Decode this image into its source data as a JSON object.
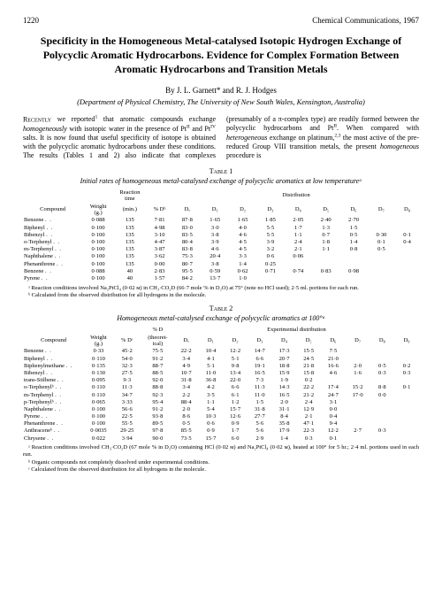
{
  "header": {
    "page_number": "1220",
    "journal": "Chemical Communications, 1967"
  },
  "title": "Specificity in the Homogeneous Metal-catalysed Isotopic Hydrogen Exchange of Polycyclic Aromatic Hydrocarbons.  Evidence for Complex Formation Between Aromatic Hydrocarbons and Transition Metals",
  "authors": "By J. L. Garnett* and R. J. Hodges",
  "affiliation": "(Department of Physical Chemistry, The University of New South Wales, Kensington, Australia)",
  "body": {
    "col_text": "Recently we reported¹ that aromatic compounds exchange homogeneously with isotopic water in the presence of Ptᴵᴵ and Ptᴵⱽ salts. It is now found that useful specificity of isotope is obtained with the polycyclic aromatic hydrocarbons under these conditions. The results (Tables 1 and 2) also indicate that complexes (presumably of a π-complex type) are readily formed between the polycyclic hydrocarbons and Ptᴵᴵ. When compared with heterogeneous exchange on platinum,²,³ the most active of the pre-reduced Group VIII transition metals, the present homogeneous procedure is"
  },
  "table1": {
    "label": "Table 1",
    "caption": "Initial rates of homogeneous metal-catalysed exchange of polycyclic aromatics at low temperatureᵃ",
    "top_headers": {
      "reaction_time": "Reaction\ntime\n(min.)",
      "distribution": "Distribution"
    },
    "headers": [
      "Compound",
      "Weight\n(g.)",
      "",
      "% Dᵇ",
      "Dₒ",
      "D₁",
      "D₂",
      "D₃",
      "D₄",
      "D₅",
      "D₆",
      "D₇",
      "D₈"
    ],
    "rows": [
      [
        "Benzene",
        "0·088",
        "135",
        "7·81",
        "87·8",
        "1·65",
        "1·65",
        "1·85",
        "2·05",
        "2·40",
        "2·70",
        "",
        ""
      ],
      [
        "Biphenyl",
        "0·100",
        "135",
        "4·98",
        "83·0",
        "3·0",
        "4·0",
        "5·5",
        "1·7",
        "1·3",
        "1·5",
        "",
        ""
      ],
      [
        "Bibenzyl",
        "0·100",
        "135",
        "3·10",
        "83·5",
        "3·8",
        "4·6",
        "5·5",
        "1·1",
        "0·7",
        "0·5",
        "0·30",
        "0·1"
      ],
      [
        "o-Terphenyl",
        "0·100",
        "135",
        "4·47",
        "80·4",
        "3·9",
        "4·5",
        "3·9",
        "2·4",
        "1·8",
        "1·4",
        "0·1",
        "0·4"
      ],
      [
        "m-Terphenyl",
        "0·100",
        "135",
        "3·87",
        "83·8",
        "4·6",
        "4·5",
        "3·2",
        "2·1",
        "1·1",
        "0·8",
        "0·5",
        ""
      ],
      [
        "Naphthalene",
        "0·100",
        "135",
        "3·62",
        "75·3",
        "20·4",
        "3·3",
        "0·6",
        "0·06",
        "",
        "",
        "",
        ""
      ],
      [
        "Phenanthrene",
        "0·100",
        "135",
        "0·00",
        "80·7",
        "3·8",
        "1·4",
        "0·25",
        "",
        "",
        "",
        "",
        ""
      ],
      [
        "Benzene",
        "0·088",
        "40",
        "2·83",
        "95·5",
        "0·59",
        "0·62",
        "0·71",
        "0·74",
        "0·83",
        "0·98",
        "",
        ""
      ],
      [
        "Pyrene",
        "0·100",
        "40",
        "1·57",
        "84·2",
        "13·7",
        "1·0",
        "",
        "",
        "",
        "",
        "",
        ""
      ]
    ],
    "footnotes": [
      "ᵃ Reaction conditions involved Na₂PtCl₄ (0·02 ᴍ) in CH₃·CO₂D (66·7 mole % in D₂O) at 75° (note no HCl used); 2·5 ml. portions for each run.",
      "ᵇ Calculated from the observed distribution for all hydrogens in the molecule."
    ]
  },
  "table2": {
    "label": "Table 2",
    "caption": "Homogeneous metal-catalysed exchange of polycyclic aromatics at 100°ᵃ",
    "top_headers": {
      "pctd": "% D\n(theoret-\nical)",
      "distribution": "Experimental distribution"
    },
    "headers": [
      "Compound",
      "Weight\n(g.)",
      "% Dᶜ",
      "",
      "Dₒ",
      "D₁",
      "D₂",
      "D₃",
      "D₄",
      "D₅",
      "D₆",
      "D₇",
      "D₈",
      "D₉"
    ],
    "rows": [
      [
        "Benzene",
        "0·33",
        "45·2",
        "75·5",
        "22·2",
        "10·4",
        "12·2",
        "14·7",
        "17·3",
        "15·5",
        "7·5",
        "",
        "",
        ""
      ],
      [
        "Biphenyl",
        "0·110",
        "54·0",
        "91·2",
        "3·4",
        "4·1",
        "5·1",
        "6·6",
        "20·7",
        "24·5",
        "21·0",
        "",
        "",
        ""
      ],
      [
        "Biphenylmethane",
        "0·135",
        "32·3",
        "88·7",
        "4·9",
        "5·1",
        "9·8",
        "19·1",
        "18·8",
        "21·8",
        "16·6",
        "2·0",
        "0·5",
        "0·2"
      ],
      [
        "Bibenzyl",
        "0·130",
        "27·5",
        "88·5",
        "10·7",
        "11·0",
        "13·4",
        "16·5",
        "15·9",
        "15·8",
        "4·6",
        "1·6",
        "0·3",
        "0·3"
      ],
      [
        "trans-Stilbene",
        "0·095",
        "9·3",
        "92·0",
        "31·8",
        "36·8",
        "22·0",
        "7·3",
        "1·9",
        "0·2",
        "",
        "",
        "",
        ""
      ],
      [
        "o-Terphenylᵇ",
        "0·110",
        "11·3",
        "88·8",
        "3·4",
        "4·2",
        "6·6",
        "11·3",
        "14·3",
        "22·2",
        "17·4",
        "15·2",
        "8·8",
        "0·1"
      ],
      [
        "m-Terphenyl",
        "0·110",
        "34·7",
        "92·3",
        "2·2",
        "3·5",
        "6·1",
        "11·0",
        "16·5",
        "21·2",
        "24·7",
        "17·0",
        "0·0",
        ""
      ],
      [
        "p-Terphenylᵇ",
        "0·065",
        "3·33",
        "95·4",
        "88·4",
        "1·1",
        "1·2",
        "1·5",
        "2·0",
        "2·4",
        "3·1",
        "",
        "",
        ""
      ],
      [
        "Naphthalene",
        "0·100",
        "56·6",
        "91·2",
        "2·0",
        "5·4",
        "15·7",
        "31·8",
        "31·1",
        "12·9",
        "0·0",
        "",
        "",
        ""
      ],
      [
        "Pyrene",
        "0·100",
        "22·5",
        "93·8",
        "8·6",
        "10·3",
        "12·6",
        "27·7",
        "8·4",
        "2·1",
        "0·4",
        "",
        "",
        ""
      ],
      [
        "Phenanthrene",
        "0·100",
        "55·5",
        "89·5",
        "0·5",
        "0·6",
        "0·9",
        "5·6",
        "35·8",
        "47·1",
        "9·4",
        "",
        "",
        ""
      ],
      [
        "Anthraceneᵇ",
        "0·0035",
        "29·25",
        "97·8",
        "85·5",
        "0·9",
        "1·7",
        "5·6",
        "17·9",
        "22·3",
        "12·2",
        "2·7",
        "0·3",
        ""
      ],
      [
        "Chrysene",
        "0·022",
        "3·94",
        "90·0",
        "73·5",
        "15·7",
        "6·0",
        "2·9",
        "1·4",
        "0·3",
        "0·1",
        "",
        "",
        ""
      ]
    ],
    "footnotes": [
      "ᵃ Reaction conditions involved CH₃·CO₂D (67 mole % in D₂O) containing HCl (0·02 ᴍ) and Na₂PtCl₄ (0·02 ᴍ), heated at 100° for 5 hr.; 2·4 ml. portions used in each run.",
      "ᵇ Organic compounds not completely dissolved under experimental conditions.",
      "ᶜ Calculated from the observed distribution for all hydrogens in the molecule."
    ]
  }
}
